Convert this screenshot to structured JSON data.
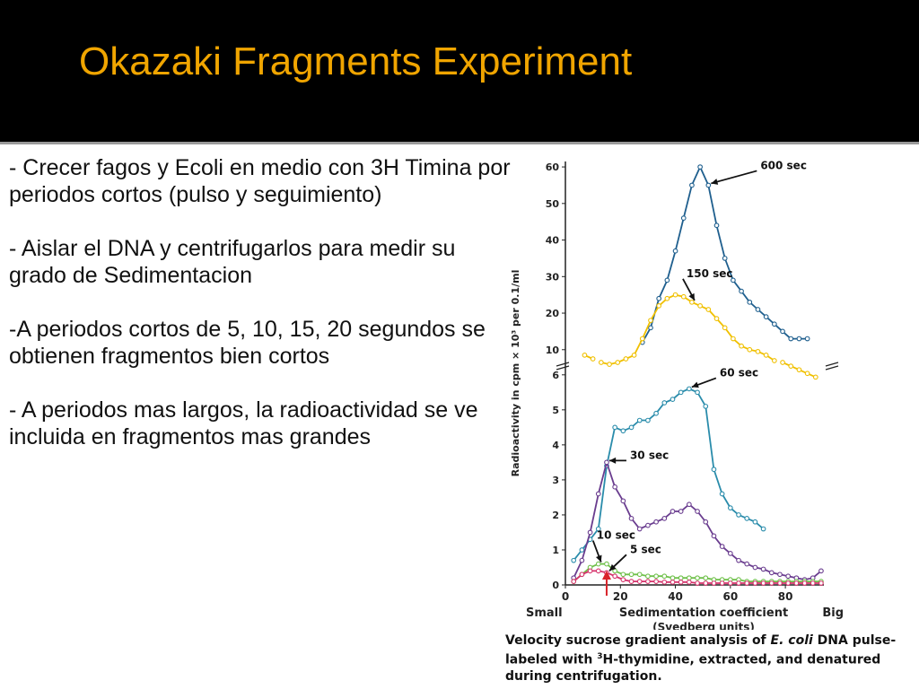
{
  "slide": {
    "title": "Okazaki Fragments Experiment",
    "bullets": [
      "- Crecer fagos y Ecoli en medio con 3H Timina por periodos cortos (pulso y seguimiento)",
      "- Aislar el DNA y centrifugarlos para medir su grado de Sedimentacion",
      "-A periodos cortos de 5, 10, 15, 20 segundos  se obtienen fragmentos bien cortos",
      "- A periodos mas largos, la radioactividad se ve incluida en fragmentos mas grandes"
    ],
    "caption": {
      "part1": "Velocity sucrose gradient analysis of ",
      "italic": "E. coli",
      "part2": " DNA pulse-labeled with ",
      "sup": "3",
      "part3": "H-thymidine, extracted, and denatured during centrifugation."
    },
    "colors": {
      "header_bg": "#000000",
      "title": "#f0a500",
      "text": "#111111"
    }
  },
  "chart_data": {
    "type": "line",
    "ylabel": "Radioactivity in cpm × 10³ per 0.1/ml",
    "xlabel": "Sedimentation coefficient",
    "xlabel_sub": "(Svedberg units)",
    "x_end_labels": {
      "left": "Small",
      "right": "Big"
    },
    "xlim": [
      0,
      94
    ],
    "xticks": [
      0,
      20,
      40,
      60,
      80
    ],
    "upper_panel": {
      "ylim": [
        7,
        61
      ],
      "yticks": [
        10,
        20,
        30,
        40,
        50,
        60
      ]
    },
    "lower_panel": {
      "ylim": [
        0,
        6.2
      ],
      "yticks": [
        0,
        1,
        2,
        3,
        4,
        5,
        6
      ]
    },
    "axis_break": true,
    "series": [
      {
        "name": "600 sec",
        "panel": "upper",
        "color": "#1f5f8e",
        "x": [
          28,
          31,
          34,
          37,
          40,
          43,
          46,
          49,
          52,
          55,
          58,
          61,
          64,
          67,
          70,
          73,
          76,
          79,
          82,
          85,
          88
        ],
        "y": [
          12,
          16,
          24,
          29,
          37,
          46,
          55,
          60,
          55,
          44,
          35,
          29,
          26,
          23,
          21,
          19,
          17,
          15,
          13,
          13,
          13
        ]
      },
      {
        "name": "150 sec",
        "panel": "upper",
        "color": "#f0c000",
        "x": [
          7,
          10,
          13,
          16,
          19,
          22,
          25,
          28,
          31,
          34,
          37,
          40,
          43,
          46,
          49,
          52,
          55,
          58,
          61,
          64,
          67,
          70,
          73,
          76,
          79,
          82,
          85,
          88,
          91
        ],
        "y": [
          8.5,
          7.5,
          6.5,
          6,
          6.5,
          7.5,
          8.5,
          13,
          18,
          22,
          24,
          25,
          24.5,
          23,
          22,
          21,
          18.5,
          16,
          13,
          11,
          10,
          9.5,
          8.5,
          7,
          6.5,
          5.5,
          4.5,
          3.5,
          2.5
        ],
        "gap_after_index": [
          1,
          23
        ]
      },
      {
        "name": "60 sec",
        "panel": "lower",
        "color": "#2a8cab",
        "x": [
          3,
          6,
          9,
          12,
          15,
          18,
          21,
          24,
          27,
          30,
          33,
          36,
          39,
          42,
          45,
          48,
          51,
          54,
          57,
          60,
          63,
          66,
          69,
          72
        ],
        "y": [
          0.7,
          1.0,
          1.3,
          1.6,
          3.4,
          4.5,
          4.4,
          4.5,
          4.7,
          4.7,
          4.9,
          5.2,
          5.3,
          5.5,
          5.6,
          5.5,
          5.1,
          3.3,
          2.6,
          2.2,
          2.0,
          1.9,
          1.8,
          1.6
        ]
      },
      {
        "name": "30 sec",
        "panel": "lower",
        "color": "#6a3d8f",
        "x": [
          3,
          6,
          9,
          12,
          15,
          18,
          21,
          24,
          27,
          30,
          33,
          36,
          39,
          42,
          45,
          48,
          51,
          54,
          57,
          60,
          63,
          66,
          69,
          72,
          75,
          78,
          81,
          84,
          87,
          90,
          93
        ],
        "y": [
          0.2,
          0.7,
          1.5,
          2.6,
          3.5,
          2.8,
          2.4,
          1.9,
          1.6,
          1.7,
          1.8,
          1.9,
          2.1,
          2.1,
          2.3,
          2.1,
          1.8,
          1.4,
          1.1,
          0.9,
          0.7,
          0.6,
          0.5,
          0.45,
          0.35,
          0.3,
          0.25,
          0.2,
          0.15,
          0.2,
          0.4
        ]
      },
      {
        "name": "10 sec",
        "panel": "lower",
        "color": "#6fc04a",
        "x": [
          3,
          6,
          9,
          12,
          15,
          18,
          21,
          24,
          27,
          30,
          33,
          36,
          39,
          42,
          45,
          48,
          51,
          54,
          57,
          60,
          63,
          66,
          69,
          72,
          75,
          78,
          81,
          84,
          87,
          90,
          93
        ],
        "y": [
          0.1,
          0.3,
          0.5,
          0.6,
          0.6,
          0.4,
          0.3,
          0.3,
          0.3,
          0.25,
          0.25,
          0.25,
          0.2,
          0.2,
          0.2,
          0.2,
          0.2,
          0.15,
          0.15,
          0.15,
          0.15,
          0.1,
          0.1,
          0.1,
          0.1,
          0.1,
          0.1,
          0.1,
          0.1,
          0.1,
          0.1
        ]
      },
      {
        "name": "5 sec",
        "panel": "lower",
        "color": "#d6336c",
        "x": [
          3,
          6,
          9,
          12,
          15,
          18,
          21,
          24,
          27,
          30,
          33,
          36,
          39,
          42,
          45,
          48,
          51,
          54,
          57,
          60,
          63,
          66,
          69,
          72,
          75,
          78,
          81,
          84,
          87,
          90,
          93
        ],
        "y": [
          0.1,
          0.3,
          0.4,
          0.4,
          0.35,
          0.25,
          0.15,
          0.1,
          0.1,
          0.1,
          0.1,
          0.08,
          0.08,
          0.08,
          0.08,
          0.05,
          0.05,
          0.05,
          0.05,
          0.05,
          0.05,
          0.05,
          0.05,
          0.05,
          0.05,
          0.05,
          0.05,
          0.05,
          0.05,
          0.05,
          0.05
        ]
      }
    ],
    "annotations": [
      {
        "text": "600 sec",
        "series": "600 sec",
        "point_index": 8
      },
      {
        "text": "150 sec",
        "series": "150 sec",
        "point_index": 13
      },
      {
        "text": "60 sec",
        "series": "60 sec",
        "point_index": 14
      },
      {
        "text": "30 sec",
        "series": "30 sec",
        "point_index": 4
      },
      {
        "text": "10 sec",
        "series": "10 sec",
        "point_index": 3
      },
      {
        "text": "5 sec",
        "series": "5 sec",
        "point_index": 4
      }
    ],
    "marker_arrow": {
      "x": 15,
      "color": "#d9232a"
    },
    "grid": false,
    "legend": "none"
  }
}
